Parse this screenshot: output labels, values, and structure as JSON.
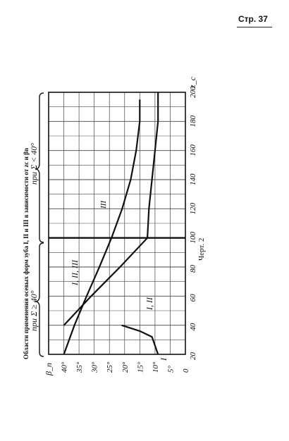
{
  "page": {
    "number": "Стр. 37"
  },
  "figure": {
    "title": "Области применения осевых форм зуба I, II и III в зависимости от zc и βn",
    "caption": "Черт. 2",
    "region_left_label": "при Σ ≥ 40°",
    "region_right_label": "при Σ < 40°"
  },
  "chart_data": {
    "type": "line",
    "title": "Области применения осевых форм зуба I, II и III в зависимости от zc и βn",
    "xlabel": "z_c",
    "ylabel": "β_n",
    "x_ticks": [
      "20",
      "40",
      "60",
      "80",
      "100",
      "120",
      "140",
      "160",
      "180",
      "200"
    ],
    "y_ticks": [
      "0",
      "5°",
      "10°",
      "15°",
      "20°",
      "25°",
      "30°",
      "35°",
      "40°"
    ],
    "xlim": [
      20,
      200
    ],
    "ylim": [
      0,
      45
    ],
    "grid": true,
    "series": [
      {
        "name": "",
        "x": [
          20,
          40,
          60,
          80,
          100,
          120,
          140,
          160,
          180,
          195
        ],
        "y": [
          40,
          36.5,
          32.5,
          28.3,
          24.3,
          20.8,
          18.0,
          16.2,
          15.0,
          15.0
        ]
      },
      {
        "name": "",
        "x": [
          40,
          60,
          80,
          100,
          120,
          140,
          160,
          180,
          200
        ],
        "y": [
          40,
          31.0,
          21.5,
          12.5,
          12.0,
          11.0,
          10.0,
          9.0,
          9.0
        ]
      },
      {
        "name": "",
        "x": [
          20,
          32,
          36,
          40
        ],
        "y": [
          9.0,
          11.0,
          15.0,
          21.0
        ]
      }
    ],
    "region_labels": [
      "I",
      "I, II",
      "I, II, III",
      "III"
    ],
    "vertical_boundary_x": 100
  }
}
